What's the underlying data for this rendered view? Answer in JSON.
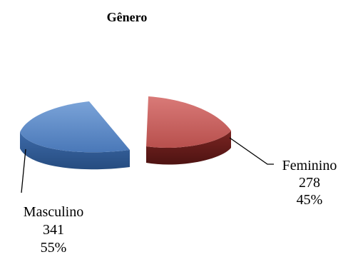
{
  "chart_data": {
    "type": "pie",
    "style": "3d-exploded",
    "title": "Gênero",
    "slices": [
      {
        "label": "Masculino",
        "value": 341,
        "percent": "55%",
        "color": "#4f7fc1"
      },
      {
        "label": "Feminino",
        "value": 278,
        "percent": "45%",
        "color": "#c0504d"
      }
    ],
    "legend": "none"
  }
}
